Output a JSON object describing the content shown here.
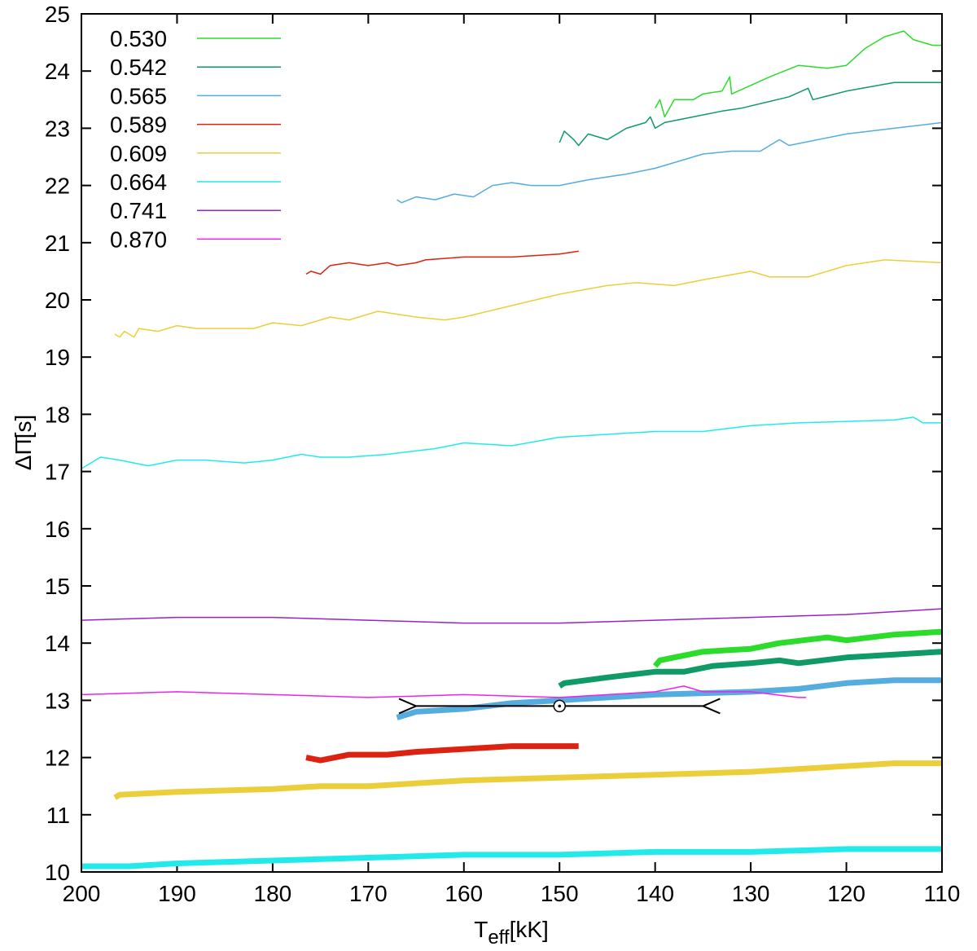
{
  "chart_data": {
    "type": "line",
    "xlabel": {
      "main": "T",
      "sub": "eff",
      "unit": "[kK]"
    },
    "ylabel": "ΔΠ̄[s]",
    "xlim": [
      200,
      110
    ],
    "xticks": [
      200,
      190,
      180,
      170,
      160,
      150,
      140,
      130,
      120,
      110
    ],
    "ylim": [
      10,
      25
    ],
    "yticks": [
      10,
      11,
      12,
      13,
      14,
      15,
      16,
      17,
      18,
      19,
      20,
      21,
      22,
      23,
      24,
      25
    ],
    "legend": "upper-left",
    "series": [
      {
        "name": "0.530",
        "color": "#2bdc2b",
        "x": [
          140,
          139.5,
          139,
          138,
          136,
          135,
          133,
          132.2,
          132,
          130,
          128,
          125,
          122,
          120,
          118,
          116,
          114,
          113,
          111,
          110
        ],
        "values": [
          23.35,
          23.5,
          23.2,
          23.5,
          23.5,
          23.6,
          23.65,
          23.9,
          23.6,
          23.75,
          23.9,
          24.1,
          24.05,
          24.1,
          24.4,
          24.6,
          24.7,
          24.55,
          24.45,
          24.45
        ]
      },
      {
        "name": "0.542",
        "color": "#109a68",
        "x": [
          150,
          149.5,
          148.5,
          148,
          147,
          145,
          143,
          141,
          140.5,
          140,
          139,
          136,
          133,
          131,
          126,
          124,
          123.5,
          120,
          115,
          112,
          110
        ],
        "values": [
          22.75,
          22.95,
          22.8,
          22.7,
          22.9,
          22.8,
          23.0,
          23.1,
          23.2,
          23.0,
          23.1,
          23.2,
          23.3,
          23.35,
          23.55,
          23.7,
          23.5,
          23.65,
          23.8,
          23.8,
          23.8
        ]
      },
      {
        "name": "0.565",
        "color": "#55acdf",
        "x": [
          167,
          166.5,
          165,
          163,
          161,
          159,
          157,
          155,
          153,
          150,
          147,
          143,
          140,
          138,
          135,
          132,
          129,
          127,
          126,
          120,
          115,
          110
        ],
        "values": [
          21.75,
          21.7,
          21.8,
          21.75,
          21.85,
          21.8,
          22.0,
          22.05,
          22.0,
          22.0,
          22.1,
          22.2,
          22.3,
          22.4,
          22.55,
          22.6,
          22.6,
          22.8,
          22.7,
          22.9,
          23.0,
          23.1
        ]
      },
      {
        "name": "0.589",
        "color": "#dd2211",
        "x": [
          176.5,
          176,
          175,
          174,
          172,
          170,
          168,
          167,
          165,
          164,
          160,
          155,
          150,
          148
        ],
        "values": [
          20.45,
          20.5,
          20.45,
          20.6,
          20.65,
          20.6,
          20.65,
          20.6,
          20.65,
          20.7,
          20.75,
          20.75,
          20.8,
          20.85
        ]
      },
      {
        "name": "0.609",
        "color": "#ecce3a",
        "x": [
          196.5,
          196,
          195.5,
          194.5,
          194,
          192,
          190,
          188,
          185,
          182,
          180,
          177,
          176,
          174,
          172,
          169,
          165,
          162,
          160,
          155,
          150,
          145,
          142,
          138,
          135,
          130,
          128,
          124,
          120,
          116,
          110
        ],
        "values": [
          19.4,
          19.35,
          19.45,
          19.35,
          19.5,
          19.45,
          19.55,
          19.5,
          19.5,
          19.5,
          19.6,
          19.55,
          19.6,
          19.7,
          19.65,
          19.8,
          19.7,
          19.65,
          19.7,
          19.9,
          20.1,
          20.25,
          20.3,
          20.25,
          20.35,
          20.5,
          20.4,
          20.4,
          20.6,
          20.7,
          20.65
        ]
      },
      {
        "name": "0.664",
        "color": "#22eaea",
        "x": [
          200,
          198,
          196,
          193,
          190,
          187,
          183,
          180,
          177,
          175,
          172,
          168,
          163,
          160,
          155,
          150,
          145,
          140,
          135,
          130,
          125,
          115,
          113,
          112,
          110
        ],
        "values": [
          17.05,
          17.25,
          17.2,
          17.1,
          17.2,
          17.2,
          17.15,
          17.2,
          17.3,
          17.25,
          17.25,
          17.3,
          17.4,
          17.5,
          17.45,
          17.6,
          17.65,
          17.7,
          17.7,
          17.8,
          17.85,
          17.9,
          17.95,
          17.85,
          17.85
        ]
      },
      {
        "name": "0.741",
        "color": "#9922cc",
        "x": [
          200,
          190,
          180,
          170,
          160,
          150,
          140,
          130,
          120,
          110
        ],
        "values": [
          14.4,
          14.45,
          14.45,
          14.4,
          14.35,
          14.35,
          14.4,
          14.45,
          14.5,
          14.6
        ]
      },
      {
        "name": "0.870",
        "color": "#ee22ee",
        "x": [
          200,
          190,
          180,
          170,
          160,
          150,
          140,
          137,
          135,
          130,
          125,
          124.2
        ],
        "values": [
          13.1,
          13.15,
          13.1,
          13.05,
          13.1,
          13.05,
          13.15,
          13.25,
          13.15,
          13.15,
          13.05,
          13.05
        ]
      }
    ],
    "series_thick": [
      {
        "color": "#22eaea",
        "x": [
          200,
          195,
          190,
          180,
          170,
          160,
          150,
          140,
          130,
          120,
          110
        ],
        "values": [
          10.1,
          10.1,
          10.15,
          10.2,
          10.25,
          10.3,
          10.3,
          10.35,
          10.35,
          10.4,
          10.4
        ]
      },
      {
        "color": "#ecce3a",
        "x": [
          196.5,
          196,
          190,
          180,
          175,
          170,
          160,
          150,
          140,
          130,
          120,
          115,
          110
        ],
        "values": [
          11.3,
          11.35,
          11.4,
          11.45,
          11.5,
          11.5,
          11.6,
          11.65,
          11.7,
          11.75,
          11.85,
          11.9,
          11.9
        ]
      },
      {
        "color": "#dd2211",
        "x": [
          176.5,
          175,
          172,
          168,
          165,
          160,
          155,
          150,
          148
        ],
        "values": [
          12.0,
          11.95,
          12.05,
          12.05,
          12.1,
          12.15,
          12.2,
          12.2,
          12.2
        ]
      },
      {
        "color": "#55acdf",
        "x": [
          167,
          165,
          160,
          155,
          150,
          145,
          140,
          130,
          125,
          120,
          115,
          110
        ],
        "values": [
          12.7,
          12.8,
          12.85,
          12.95,
          13.0,
          13.05,
          13.1,
          13.15,
          13.2,
          13.3,
          13.35,
          13.35
        ]
      },
      {
        "color": "#109a68",
        "x": [
          150,
          149.5,
          145,
          140,
          137,
          134,
          130,
          127,
          125,
          120,
          115,
          110
        ],
        "values": [
          13.25,
          13.3,
          13.4,
          13.5,
          13.5,
          13.6,
          13.65,
          13.7,
          13.65,
          13.75,
          13.8,
          13.85
        ]
      },
      {
        "color": "#2bdc2b",
        "x": [
          140,
          139.5,
          135,
          130,
          127,
          122,
          120,
          115,
          110
        ],
        "values": [
          13.6,
          13.7,
          13.85,
          13.9,
          14.0,
          14.1,
          14.05,
          14.15,
          14.2
        ]
      }
    ],
    "point": {
      "x": 150,
      "y": 12.9,
      "xerr": 15,
      "color": "#000000"
    }
  }
}
